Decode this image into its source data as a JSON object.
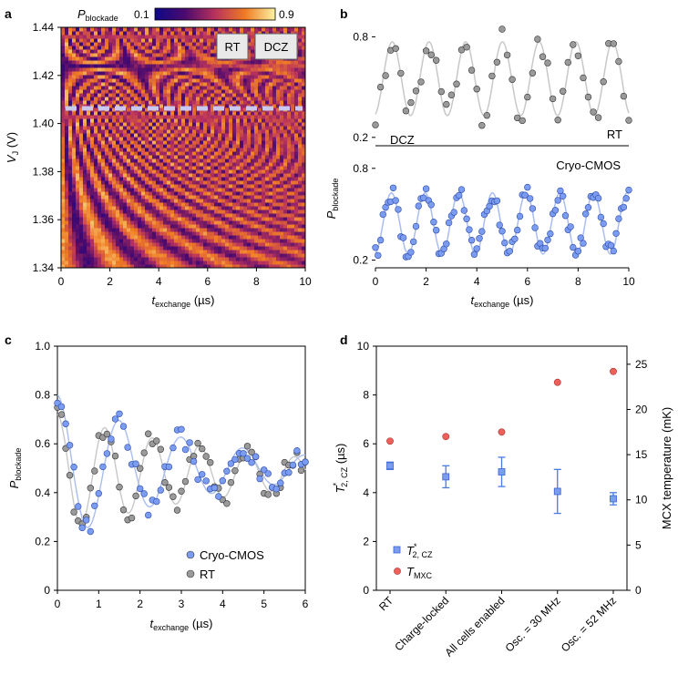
{
  "colors": {
    "rt_marker": "#9a9a9a",
    "rt_fit": "#c8c8c8",
    "cmos_marker": "#7b9cf0",
    "cmos_fit": "#a9bdf3",
    "tmxc": "#f0605a",
    "t2": "#4a7be0"
  },
  "chart_data": [
    {
      "panel": "a",
      "type": "heatmap",
      "colorbar": {
        "label_main": "P",
        "label_sub": "blockade",
        "min": "0.1",
        "max": "0.9"
      },
      "xlabel_main": "t",
      "xlabel_sub": "exchange",
      "xlabel_unit": " (µs)",
      "ylabel_main": "V",
      "ylabel_sub": "J",
      "ylabel_unit": " (V)",
      "xlim": [
        0,
        10
      ],
      "ylim": [
        1.34,
        1.44
      ],
      "xticks": [
        "0",
        "2",
        "4",
        "6",
        "8",
        "10"
      ],
      "yticks": [
        "1.34",
        "1.36",
        "1.38",
        "1.40",
        "1.42",
        "1.44"
      ],
      "buttons": [
        "RT",
        "DCZ"
      ],
      "dashed_line_vj": 1.406
    },
    {
      "panel": "b",
      "type": "scatter",
      "ylabel_main": "P",
      "ylabel_sub": "blockade",
      "xlabel_main": "t",
      "xlabel_sub": "exchange",
      "xlabel_unit": " (µs)",
      "xticks": [
        "0",
        "2",
        "4",
        "6",
        "8",
        "10"
      ],
      "top": {
        "label_right": "RT",
        "yticks": [
          "0.2",
          "0.8"
        ],
        "ylim": [
          0.15,
          0.9
        ]
      },
      "bottom": {
        "label_left": "DCZ",
        "label_right": "Cryo-CMOS",
        "yticks": [
          "0.2",
          "0.8"
        ],
        "ylim": [
          0.15,
          0.9
        ]
      },
      "xlim": [
        0,
        10
      ]
    },
    {
      "panel": "c",
      "type": "scatter",
      "xlim": [
        0,
        6
      ],
      "ylim": [
        0,
        1.0
      ],
      "xticks": [
        "0",
        "1",
        "2",
        "3",
        "4",
        "5",
        "6"
      ],
      "yticks": [
        "0",
        "0.2",
        "0.4",
        "0.6",
        "0.8",
        "1.0"
      ],
      "ylabel_main": "P",
      "ylabel_sub": "blockade",
      "xlabel_main": "t",
      "xlabel_sub": "exchange",
      "xlabel_unit": " (µs)",
      "legend": [
        "Cryo-CMOS",
        "RT"
      ]
    },
    {
      "panel": "d",
      "type": "scatter",
      "categories": [
        "RT",
        "Charge-locked",
        "All cells enabled",
        "Osc. = 30 MHz",
        "Osc. = 52 MHz"
      ],
      "t2_values": [
        5.1,
        4.65,
        4.85,
        4.05,
        3.75
      ],
      "t2_errors": [
        0.15,
        0.45,
        0.6,
        0.9,
        0.25
      ],
      "tmxc_values": [
        16.5,
        17.0,
        17.5,
        23.0,
        24.2
      ],
      "ylim_left": [
        0,
        10
      ],
      "ylim_right": [
        0,
        27
      ],
      "yticks_left": [
        "0",
        "2",
        "4",
        "6",
        "8",
        "10"
      ],
      "yticks_right": [
        "0",
        "5",
        "10",
        "15",
        "20",
        "25"
      ],
      "ylabel_left_main": "T",
      "ylabel_left_sup": "*",
      "ylabel_left_sub": "2, CZ",
      "ylabel_left_unit": " (µs)",
      "ylabel_right": "MCX temperature (mK)",
      "legend_t2_main": "T",
      "legend_t2_sup": "*",
      "legend_t2_sub": "2, CZ",
      "legend_tmxc_main": "T",
      "legend_tmxc_sub": "MXC"
    }
  ],
  "panel_letters": [
    "a",
    "b",
    "c",
    "d"
  ]
}
